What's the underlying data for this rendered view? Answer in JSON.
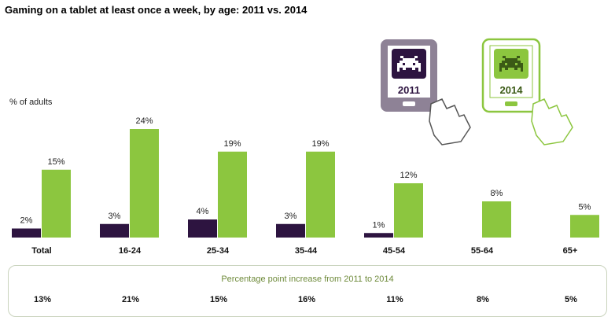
{
  "title": "Gaming on a tablet at least once a week, by age: 2011 vs. 2014",
  "colors": {
    "y2011": "#2d1440",
    "y2014": "#8cc63f",
    "tablet2011": "#7a6b85",
    "tablet2014": "#8cc63f"
  },
  "tablet_icons": [
    {
      "year_label": "2011",
      "icon": "space-invader-tablet-icon"
    },
    {
      "year_label": "2014",
      "icon": "space-invader-tablet-icon"
    }
  ],
  "chart_data": {
    "type": "bar",
    "title": "Gaming on a tablet at least once a week, by age: 2011 vs. 2014",
    "ylabel": "% of adults",
    "categories": [
      "Total",
      "16-24",
      "25-34",
      "35-44",
      "45-54",
      "55-64",
      "65+"
    ],
    "series": [
      {
        "name": "2011",
        "values": [
          2,
          3,
          4,
          3,
          1,
          null,
          null
        ],
        "labels": [
          "2%",
          "3%",
          "4%",
          "3%",
          "1%",
          "",
          ""
        ]
      },
      {
        "name": "2014",
        "values": [
          15,
          24,
          19,
          19,
          12,
          8,
          5
        ],
        "labels": [
          "15%",
          "24%",
          "19%",
          "19%",
          "12%",
          "8%",
          "5%"
        ]
      }
    ],
    "ylim": [
      0,
      24
    ],
    "grid": false
  },
  "increase": {
    "title": "Percentage point increase from 2011 to 2014",
    "values": [
      "13%",
      "21%",
      "15%",
      "16%",
      "11%",
      "8%",
      "5%"
    ]
  }
}
